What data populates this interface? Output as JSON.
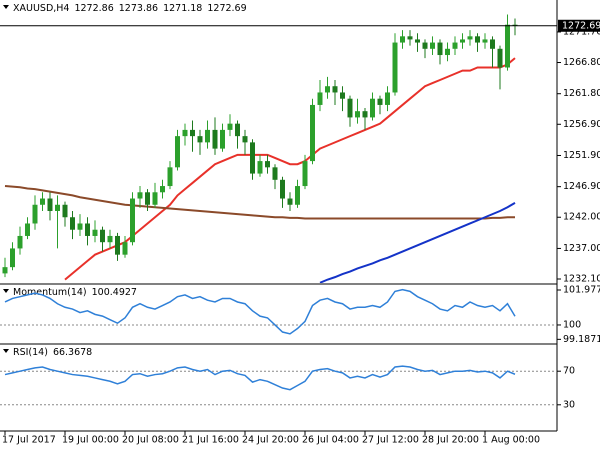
{
  "chart_data": [
    {
      "type": "candlestick",
      "symbol": "XAUUSD,H4",
      "categories": [
        "17 Jul 2017",
        null,
        null,
        null,
        null,
        null,
        null,
        null,
        "19 Jul 00:00",
        null,
        null,
        null,
        null,
        null,
        null,
        null,
        "20 Jul 08:00",
        null,
        null,
        null,
        null,
        null,
        null,
        null,
        "21 Jul 16:00",
        null,
        null,
        null,
        null,
        null,
        null,
        null,
        "24 Jul 20:00",
        null,
        null,
        null,
        null,
        null,
        null,
        null,
        "26 Jul 04:00",
        null,
        null,
        null,
        null,
        null,
        null,
        null,
        "27 Jul 12:00",
        null,
        null,
        null,
        null,
        null,
        null,
        null,
        "28 Jul 20:00",
        null,
        null,
        null,
        null,
        null,
        null,
        null,
        "1 Aug 00:00",
        null,
        null,
        null,
        null
      ],
      "open": [
        1233,
        1234,
        1237,
        1239,
        1241,
        1244,
        1245,
        1243,
        1244,
        1242,
        1240,
        1241,
        1239,
        1240,
        1238,
        1239,
        1236,
        1238,
        1245,
        1246,
        1244,
        1246,
        1247,
        1250,
        1255,
        1256,
        1255,
        1254,
        1256,
        1253,
        1256,
        1257,
        1255,
        1254,
        1249,
        1251,
        1250,
        1248,
        1245,
        1244,
        1247,
        1251,
        1260,
        1262,
        1263,
        1262,
        1261,
        1258,
        1259,
        1258,
        1261,
        1260,
        1262,
        1270,
        1271,
        1270.5,
        1270,
        1269,
        1270,
        1268,
        1269,
        1270,
        1270.5,
        1271,
        1270,
        1270.5,
        1269,
        1266,
        1272.86
      ],
      "high": [
        1235.5,
        1238,
        1240.5,
        1242,
        1245.5,
        1246,
        1246,
        1245.5,
        1244.5,
        1243,
        1242.5,
        1242,
        1241.5,
        1240.5,
        1240,
        1239.5,
        1239,
        1246,
        1247,
        1246.5,
        1247.5,
        1248,
        1251,
        1256,
        1257,
        1257.5,
        1256,
        1257.5,
        1258,
        1257,
        1258.5,
        1257.5,
        1256,
        1254.5,
        1252,
        1252,
        1250.5,
        1248.5,
        1246,
        1248,
        1252,
        1261,
        1264,
        1264.5,
        1264,
        1263,
        1261.5,
        1261,
        1259.5,
        1262,
        1261.5,
        1263,
        1271.5,
        1272,
        1272,
        1271.5,
        1270.5,
        1271,
        1270.5,
        1270,
        1271,
        1271.5,
        1272,
        1271.5,
        1271.5,
        1271,
        1269.5,
        1274.5,
        1273.86
      ],
      "low": [
        1232.4,
        1233.5,
        1236,
        1238.5,
        1240,
        1243,
        1241.5,
        1237,
        1240.5,
        1238.5,
        1239,
        1237.5,
        1238,
        1236.5,
        1237,
        1235,
        1235.5,
        1237.5,
        1243.5,
        1243,
        1243.5,
        1245,
        1246.5,
        1249.5,
        1253.5,
        1252.5,
        1252,
        1253,
        1252,
        1252.5,
        1255,
        1253,
        1252,
        1248,
        1248.5,
        1249,
        1246.5,
        1243.5,
        1243,
        1243.5,
        1246.5,
        1250.5,
        1259,
        1261,
        1260,
        1259,
        1256.5,
        1257,
        1256,
        1257.5,
        1258.5,
        1259,
        1261.5,
        1269,
        1269.5,
        1268.5,
        1267.5,
        1268,
        1266.5,
        1267,
        1268,
        1269,
        1269.5,
        1268.5,
        1269,
        1266,
        1262.5,
        1265.5,
        1271.18
      ],
      "close": [
        1234,
        1237,
        1239,
        1241,
        1244,
        1245,
        1243,
        1244,
        1242,
        1240,
        1241,
        1239,
        1240,
        1238,
        1239,
        1236,
        1238,
        1245,
        1246,
        1244,
        1246,
        1247,
        1250,
        1255,
        1256,
        1255,
        1254,
        1256,
        1253,
        1256,
        1257,
        1255,
        1254,
        1249,
        1251,
        1250,
        1248,
        1245,
        1244,
        1247,
        1251,
        1260,
        1262,
        1263,
        1262,
        1261,
        1258,
        1259,
        1258,
        1261,
        1260,
        1262,
        1270,
        1271,
        1270.5,
        1270,
        1269,
        1270,
        1268,
        1269,
        1270,
        1270.5,
        1271,
        1270,
        1270.5,
        1269,
        1266,
        1272.86,
        1272.69
      ],
      "up_color": "#2ca02c",
      "down_color": "#1e7a1e",
      "series": [
        {
          "color": "#e8312a",
          "values": [
            null,
            null,
            null,
            null,
            null,
            null,
            null,
            null,
            1232,
            1233,
            1234,
            1235,
            1236,
            1236.5,
            1237,
            1237.5,
            1238,
            1239,
            1240,
            1241,
            1242,
            1243,
            1244,
            1245.5,
            1246.5,
            1247.5,
            1248.5,
            1249.5,
            1250.5,
            1251,
            1251.5,
            1252,
            1252,
            1252,
            1252,
            1252,
            1251.5,
            1251,
            1250.5,
            1250.5,
            1251,
            1252,
            1253,
            1253.5,
            1254,
            1254.5,
            1255,
            1255.5,
            1256,
            1256.5,
            1257,
            1258,
            1259,
            1260,
            1261,
            1262,
            1263,
            1263.5,
            1264,
            1264.5,
            1265,
            1265.5,
            1265.5,
            1266,
            1266,
            1266,
            1266,
            1266.5,
            1267.5
          ]
        },
        {
          "color": "#8b4a2a",
          "values": [
            1247,
            1246.9,
            1246.8,
            1246.6,
            1246.5,
            1246.3,
            1246.1,
            1245.9,
            1245.7,
            1245.5,
            1245.2,
            1245,
            1244.8,
            1244.6,
            1244.4,
            1244.2,
            1244,
            1243.9,
            1243.8,
            1243.7,
            1243.6,
            1243.5,
            1243.4,
            1243.3,
            1243.2,
            1243.1,
            1243,
            1242.9,
            1242.8,
            1242.7,
            1242.6,
            1242.5,
            1242.4,
            1242.3,
            1242.2,
            1242.1,
            1242,
            1242,
            1241.9,
            1241.9,
            1241.8,
            1241.8,
            1241.8,
            1241.8,
            1241.8,
            1241.8,
            1241.8,
            1241.8,
            1241.8,
            1241.8,
            1241.8,
            1241.8,
            1241.8,
            1241.8,
            1241.8,
            1241.8,
            1241.8,
            1241.8,
            1241.8,
            1241.8,
            1241.8,
            1241.8,
            1241.8,
            1241.8,
            1241.8,
            1241.9,
            1241.9,
            1242,
            1242
          ]
        },
        {
          "color": "#1433c8",
          "values": [
            null,
            null,
            null,
            null,
            null,
            null,
            null,
            null,
            null,
            null,
            null,
            null,
            null,
            null,
            null,
            null,
            null,
            null,
            null,
            null,
            null,
            null,
            null,
            null,
            null,
            null,
            null,
            null,
            null,
            null,
            null,
            null,
            null,
            null,
            null,
            null,
            null,
            null,
            null,
            null,
            null,
            null,
            1231.5,
            1232,
            1232.4,
            1232.9,
            1233.3,
            1233.8,
            1234.2,
            1234.6,
            1235.1,
            1235.5,
            1236,
            1236.5,
            1237,
            1237.5,
            1238,
            1238.5,
            1239,
            1239.5,
            1240,
            1240.5,
            1241,
            1241.5,
            1242,
            1242.5,
            1243,
            1243.6,
            1244.3
          ]
        }
      ],
      "ylim": [
        1231.46,
        1276.5
      ],
      "yticks": [
        {
          "value": 1232.1,
          "label": "1232.10"
        },
        {
          "value": 1237,
          "label": "1237.00"
        },
        {
          "value": 1242,
          "label": "1242.00"
        },
        {
          "value": 1246.9,
          "label": "1246.90"
        },
        {
          "value": 1251.9,
          "label": "1251.90"
        },
        {
          "value": 1256.9,
          "label": "1256.90"
        },
        {
          "value": 1261.8,
          "label": "1261.80"
        },
        {
          "value": 1266.8,
          "label": "1266.80"
        },
        {
          "value": 1271.7,
          "label": "1271.70"
        }
      ]
    },
    {
      "type": "line",
      "label": "Momentum(14)",
      "series": [
        {
          "color": "#2f80d8",
          "values": [
            101.3,
            101.5,
            101.6,
            101.7,
            101.8,
            101.7,
            101.5,
            101.2,
            101.0,
            100.9,
            100.7,
            100.8,
            100.6,
            100.5,
            100.3,
            100.1,
            100.4,
            101.0,
            101.2,
            101.0,
            100.9,
            101.1,
            101.3,
            101.6,
            101.7,
            101.5,
            101.6,
            101.4,
            101.3,
            101.5,
            101.5,
            101.3,
            101.2,
            100.8,
            100.5,
            100.4,
            100.0,
            99.6,
            99.5,
            99.8,
            100.2,
            101.1,
            101.4,
            101.5,
            101.3,
            101.2,
            100.9,
            101.0,
            101.0,
            101.1,
            101.0,
            101.3,
            101.9,
            102.0,
            101.9,
            101.6,
            101.4,
            101.2,
            100.9,
            100.8,
            101.1,
            101.0,
            101.3,
            101.1,
            101.0,
            101.1,
            100.8,
            101.2,
            100.4927
          ]
        }
      ],
      "ylim": [
        98.98,
        102.26
      ],
      "yticks": [
        101.9778,
        100,
        99.1871
      ],
      "levels": [
        100
      ]
    },
    {
      "type": "line",
      "label": "RSI(14)",
      "series": [
        {
          "color": "#2f80d8",
          "values": [
            66,
            68,
            70,
            72,
            74,
            75,
            72,
            70,
            68,
            66,
            65,
            64,
            62,
            60,
            58,
            55,
            58,
            66,
            67,
            64,
            66,
            67,
            70,
            74,
            75,
            72,
            70,
            72,
            66,
            70,
            71,
            67,
            65,
            57,
            60,
            58,
            54,
            50,
            48,
            53,
            58,
            70,
            72,
            73,
            70,
            68,
            62,
            64,
            62,
            66,
            63,
            66,
            75,
            76,
            75,
            72,
            70,
            71,
            66,
            68,
            70,
            70,
            71,
            69,
            70,
            68,
            62,
            70,
            66.3678
          ]
        }
      ],
      "ylim": [
        0,
        100
      ],
      "yticks": [
        70,
        30
      ],
      "levels": [
        70,
        30
      ]
    }
  ]
}
